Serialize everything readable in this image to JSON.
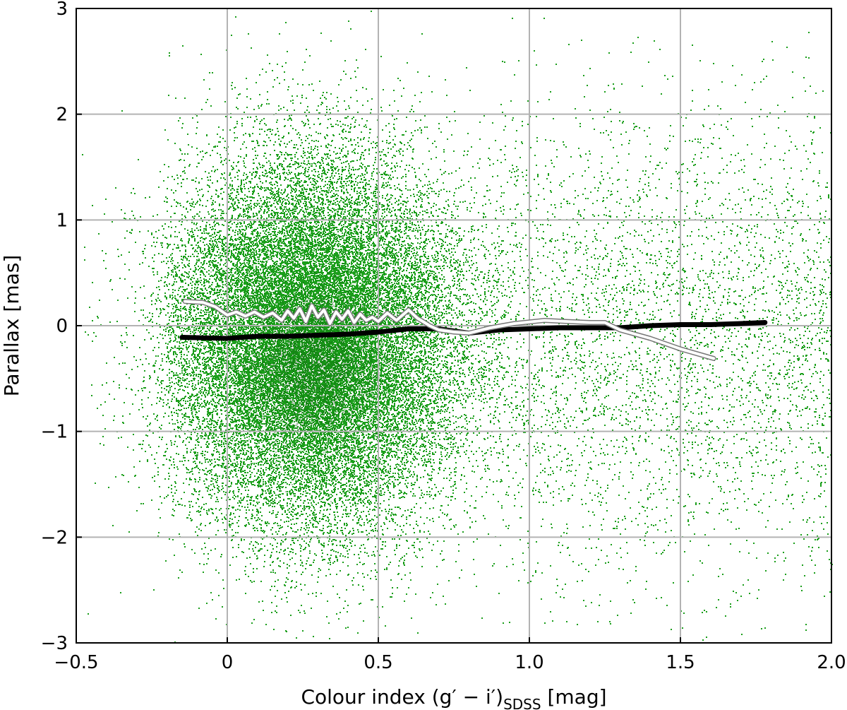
{
  "chart_data": {
    "type": "scatter",
    "xlabel": {
      "main": "Colour index (g′ − i′)",
      "sub": "SDSS",
      "unit": " [mag]"
    },
    "ylabel": "Parallax [mas]",
    "xlim": [
      -0.5,
      2.0
    ],
    "ylim": [
      -3,
      3
    ],
    "xticks": [
      -0.5,
      0,
      0.5,
      1.0,
      1.5,
      2.0
    ],
    "xtick_labels": [
      "−0.5",
      "0",
      "0.5",
      "1.0",
      "1.5",
      "2.0"
    ],
    "yticks": [
      -3,
      -2,
      -1,
      0,
      1,
      2,
      3
    ],
    "ytick_labels": [
      "−3",
      "−2",
      "−1",
      "0",
      "1",
      "2",
      "3"
    ],
    "grid": true,
    "scatter_color": "#1a9e1a",
    "scatter_dense_color": "#0f5c0f",
    "scatter_distribution": {
      "x_center": 0.28,
      "x_spread": 0.22,
      "x_tail_max": 2.0,
      "y_center": -0.15,
      "y_spread": 0.85,
      "approx_points": 60000
    },
    "series": [
      {
        "style": "thick-black",
        "color": "#000000",
        "x": [
          -0.15,
          0.0,
          0.1,
          0.2,
          0.3,
          0.4,
          0.5,
          0.6,
          0.7,
          0.8,
          0.9,
          1.0,
          1.1,
          1.2,
          1.3,
          1.4,
          1.5,
          1.6,
          1.7,
          1.78
        ],
        "y": [
          -0.11,
          -0.12,
          -0.1,
          -0.1,
          -0.09,
          -0.08,
          -0.06,
          -0.03,
          -0.03,
          -0.07,
          -0.04,
          -0.03,
          -0.02,
          -0.02,
          -0.02,
          0.0,
          0.01,
          0.01,
          0.02,
          0.03
        ]
      },
      {
        "style": "white-outlined",
        "color": "#ffffff",
        "x": [
          -0.14,
          -0.08,
          -0.04,
          0.0,
          0.03,
          0.06,
          0.09,
          0.12,
          0.15,
          0.18,
          0.2,
          0.22,
          0.24,
          0.26,
          0.28,
          0.3,
          0.32,
          0.34,
          0.36,
          0.38,
          0.4,
          0.42,
          0.44,
          0.46,
          0.48,
          0.5,
          0.53,
          0.56,
          0.6,
          0.63,
          0.67,
          0.7,
          0.75,
          0.8,
          0.87,
          0.95,
          1.05,
          1.12,
          1.2,
          1.25,
          1.3,
          1.35,
          1.4,
          1.5,
          1.61
        ],
        "y": [
          0.23,
          0.22,
          0.18,
          0.1,
          0.13,
          0.09,
          0.13,
          0.08,
          0.12,
          0.05,
          0.14,
          0.07,
          0.16,
          0.04,
          0.19,
          0.08,
          0.15,
          0.02,
          0.13,
          0.06,
          0.14,
          0.03,
          0.11,
          0.05,
          0.08,
          0.04,
          0.12,
          0.05,
          0.15,
          0.07,
          0.0,
          -0.04,
          -0.06,
          -0.07,
          -0.02,
          0.02,
          0.05,
          0.04,
          0.03,
          0.03,
          -0.04,
          -0.08,
          -0.12,
          -0.22,
          -0.31
        ]
      }
    ]
  }
}
